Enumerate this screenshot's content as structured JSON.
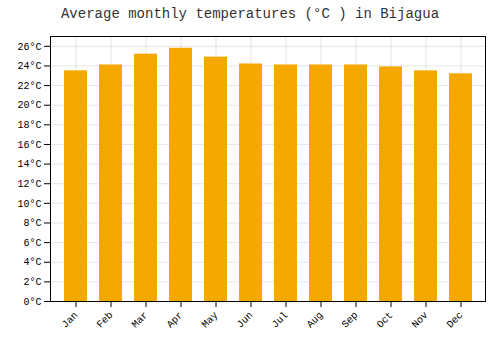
{
  "chart_data": {
    "type": "bar",
    "title": "Average monthly temperatures (°C ) in Bijagua",
    "categories": [
      "Jan",
      "Feb",
      "Mar",
      "Apr",
      "May",
      "Jun",
      "Jul",
      "Aug",
      "Sep",
      "Oct",
      "Nov",
      "Dec"
    ],
    "values": [
      23.5,
      24.1,
      25.2,
      25.8,
      24.9,
      24.2,
      24.1,
      24.1,
      24.1,
      23.9,
      23.5,
      23.2
    ],
    "color": "#F5A800",
    "ylim": [
      0,
      27
    ],
    "yticks": [
      {
        "value": 0,
        "label": "0°C"
      },
      {
        "value": 2,
        "label": "2°C"
      },
      {
        "value": 4,
        "label": "4°C"
      },
      {
        "value": 6,
        "label": "6°C"
      },
      {
        "value": 8,
        "label": "8°C"
      },
      {
        "value": 10,
        "label": "10°C"
      },
      {
        "value": 12,
        "label": "12°C"
      },
      {
        "value": 14,
        "label": "14°C"
      },
      {
        "value": 16,
        "label": "16°C"
      },
      {
        "value": 18,
        "label": "18°C"
      },
      {
        "value": 20,
        "label": "20°C"
      },
      {
        "value": 22,
        "label": "22°C"
      },
      {
        "value": 24,
        "label": "24°C"
      },
      {
        "value": 26,
        "label": "26°C"
      }
    ],
    "grid": true
  }
}
